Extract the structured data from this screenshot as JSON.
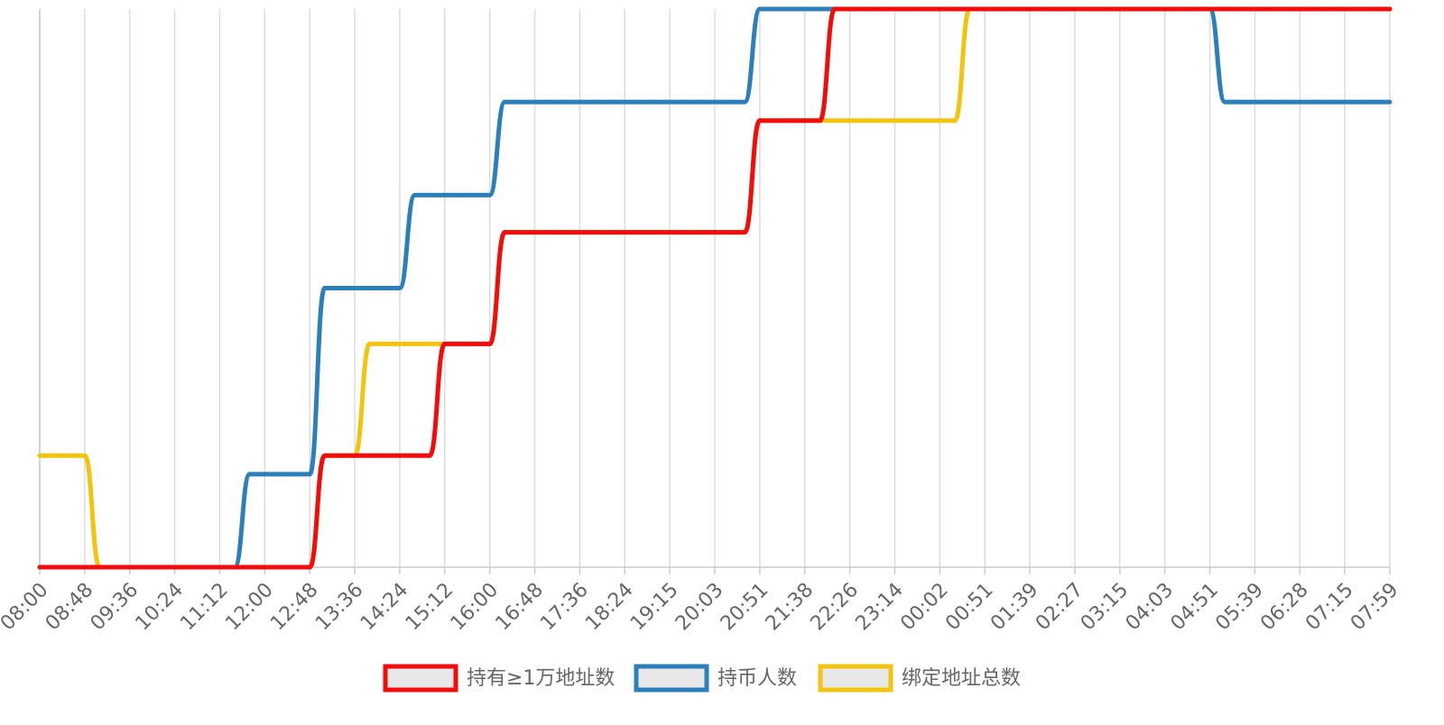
{
  "chart_data": {
    "type": "line",
    "categories": [
      "08:00",
      null,
      null,
      "08:48",
      null,
      null,
      "09:36",
      null,
      null,
      "10:24",
      null,
      null,
      "11:12",
      null,
      null,
      "12:00",
      null,
      null,
      "12:48",
      null,
      null,
      "13:36",
      null,
      null,
      "14:24",
      null,
      null,
      "15:12",
      null,
      null,
      "16:00",
      null,
      null,
      "16:48",
      null,
      null,
      "17:36",
      null,
      null,
      "18:24",
      null,
      null,
      "19:15",
      null,
      null,
      "20:03",
      null,
      null,
      "20:51",
      null,
      null,
      "21:38",
      null,
      null,
      "22:26",
      null,
      null,
      "23:14",
      null,
      null,
      "00:02",
      null,
      null,
      "00:51",
      null,
      null,
      "01:39",
      null,
      null,
      "02:27",
      null,
      null,
      "03:15",
      null,
      null,
      "04:03",
      null,
      null,
      "04:51",
      null,
      null,
      "05:39",
      null,
      null,
      "06:28",
      null,
      null,
      "07:15",
      null,
      null,
      "07:59"
    ],
    "series": [
      {
        "name": "持有≥1万地址数",
        "color": "#f20c0c",
        "values": [
          0,
          0,
          0,
          0,
          0,
          0,
          0,
          0,
          0,
          0,
          0,
          0,
          0,
          0,
          0,
          0,
          0,
          0,
          0,
          1.2,
          1.2,
          1.2,
          1.2,
          1.2,
          1.2,
          1.2,
          1.2,
          2.4,
          2.4,
          2.4,
          2.4,
          3.6,
          3.6,
          3.6,
          3.6,
          3.6,
          3.6,
          3.6,
          3.6,
          3.6,
          3.6,
          3.6,
          3.6,
          3.6,
          3.6,
          3.6,
          3.6,
          3.6,
          4.8,
          4.8,
          4.8,
          4.8,
          4.8,
          6,
          6,
          6,
          6,
          6,
          6,
          6,
          6,
          6,
          6,
          6,
          6,
          6,
          6,
          6,
          6,
          6,
          6,
          6,
          6,
          6,
          6,
          6,
          6,
          6,
          6,
          6,
          6,
          6,
          6,
          6,
          6,
          6,
          6,
          6,
          6,
          6,
          6
        ]
      },
      {
        "name": "持币人数",
        "color": "#2b7fba",
        "values": [
          0,
          0,
          0,
          0,
          0,
          0,
          0,
          0,
          0,
          0,
          0,
          0,
          0,
          0,
          1,
          1,
          1,
          1,
          1,
          3,
          3,
          3,
          3,
          3,
          3,
          4,
          4,
          4,
          4,
          4,
          4,
          5,
          5,
          5,
          5,
          5,
          5,
          5,
          5,
          5,
          5,
          5,
          5,
          5,
          5,
          5,
          5,
          5,
          6,
          6,
          6,
          6,
          6,
          6,
          6,
          6,
          6,
          6,
          6,
          6,
          6,
          6,
          6,
          6,
          6,
          6,
          6,
          6,
          6,
          6,
          6,
          6,
          6,
          6,
          6,
          6,
          6,
          6,
          6,
          5,
          5,
          5,
          5,
          5,
          5,
          5,
          5,
          5,
          5,
          5,
          5
        ]
      },
      {
        "name": "绑定地址总数",
        "color": "#f2c40f",
        "values": [
          1.2,
          1.2,
          1.2,
          1.2,
          0,
          0,
          0,
          0,
          0,
          0,
          0,
          0,
          0,
          0,
          0,
          0,
          0,
          0,
          0,
          1.2,
          1.2,
          1.2,
          2.4,
          2.4,
          2.4,
          2.4,
          2.4,
          2.4,
          2.4,
          2.4,
          2.4,
          3.6,
          3.6,
          3.6,
          3.6,
          3.6,
          3.6,
          3.6,
          3.6,
          3.6,
          3.6,
          3.6,
          3.6,
          3.6,
          3.6,
          3.6,
          3.6,
          3.6,
          4.8,
          4.8,
          4.8,
          4.8,
          4.8,
          4.8,
          4.8,
          4.8,
          4.8,
          4.8,
          4.8,
          4.8,
          4.8,
          4.8,
          6,
          6,
          6,
          6,
          6,
          6,
          6,
          6,
          6,
          6,
          6,
          6,
          6,
          6,
          6,
          6,
          6,
          6,
          6,
          6,
          6,
          6,
          6,
          6,
          6,
          6,
          6,
          6,
          6
        ]
      }
    ],
    "ylim": [
      0,
      6
    ],
    "grid": true,
    "legend": "bottom"
  }
}
